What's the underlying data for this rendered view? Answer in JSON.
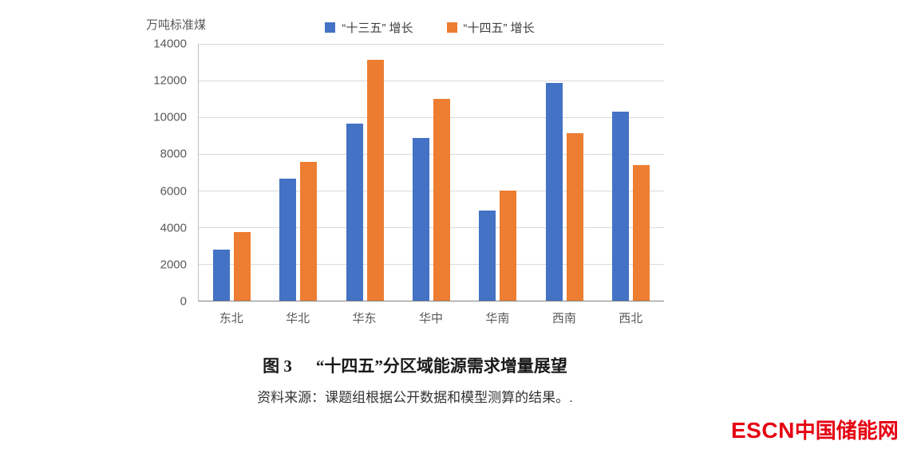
{
  "chart_data": {
    "type": "bar",
    "categories": [
      "东北",
      "华北",
      "华东",
      "华中",
      "华南",
      "西南",
      "西北"
    ],
    "series": [
      {
        "name": "“十三五” 增长",
        "color": "#4472C4",
        "values": [
          2800,
          6650,
          9650,
          8850,
          4900,
          11850,
          10300
        ]
      },
      {
        "name": "“十四五” 增长",
        "color": "#ED7D31",
        "values": [
          3750,
          7550,
          13150,
          11000,
          6000,
          9150,
          7400
        ]
      }
    ],
    "title": "“十四五”分区域能源需求增量展望",
    "xlabel": "",
    "ylabel": "万吨标准煤",
    "ylim": [
      0,
      14000
    ],
    "ytick_step": 2000,
    "grid": true,
    "legend_position": "top"
  },
  "caption": {
    "fig_label": "图 3",
    "title": "“十四五”分区域能源需求增量展望"
  },
  "source": "资料来源：课题组根据公开数据和模型测算的结果。.",
  "logo": {
    "escn": "ESCN",
    "name": "中国储能网",
    "color": "#e60012"
  }
}
